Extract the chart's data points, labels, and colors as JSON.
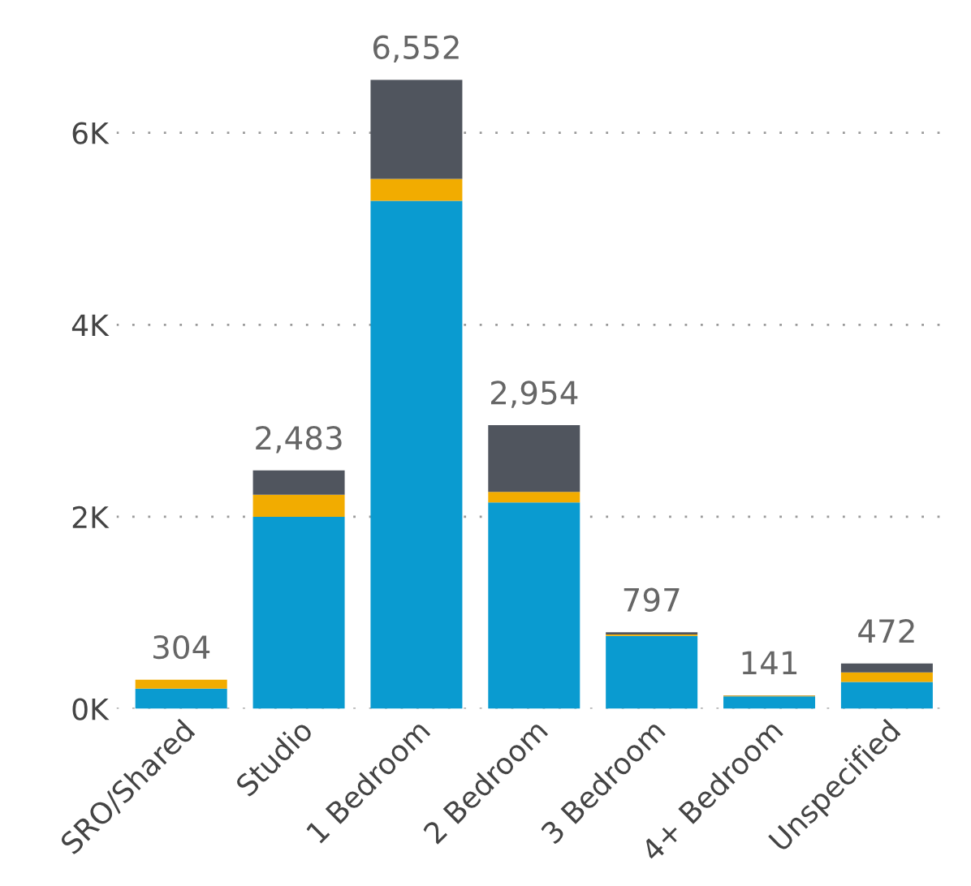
{
  "chart_data": {
    "type": "bar",
    "stacked": true,
    "categories": [
      "SRO/Shared",
      "Studio",
      "1 Bedroom",
      "2 Bedroom",
      "3 Bedroom",
      "4+ Bedroom",
      "Unspecified"
    ],
    "series": [
      {
        "color": "#0a9bd0",
        "values": [
          210,
          2000,
          5290,
          2150,
          760,
          130,
          280
        ]
      },
      {
        "color": "#f2ac00",
        "values": [
          94,
          230,
          230,
          110,
          15,
          8,
          100
        ]
      },
      {
        "color": "#50555e",
        "values": [
          0,
          253,
          1032,
          694,
          22,
          3,
          92
        ]
      }
    ],
    "totals": [
      "304",
      "2,483",
      "6,552",
      "2,954",
      "797",
      "141",
      "472"
    ],
    "ylim": [
      0,
      6552
    ],
    "yticks": [
      {
        "value": 0,
        "label": "0K"
      },
      {
        "value": 2000,
        "label": "2K"
      },
      {
        "value": 4000,
        "label": "4K"
      },
      {
        "value": 6000,
        "label": "6K"
      }
    ],
    "grid": "y",
    "legend": false
  }
}
